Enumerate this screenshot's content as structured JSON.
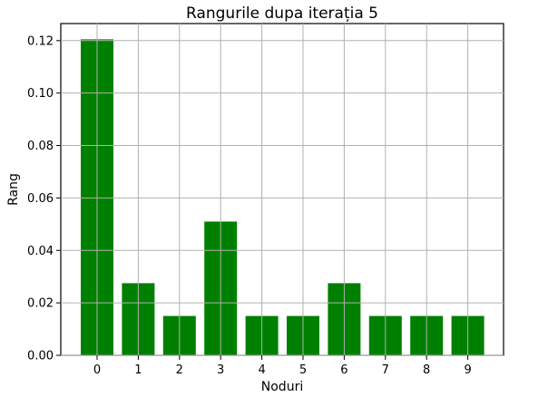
{
  "chart_data": {
    "type": "bar",
    "title": "Rangurile dupa iterația 5",
    "xlabel": "Noduri",
    "ylabel": "Rang",
    "categories": [
      "0",
      "1",
      "2",
      "3",
      "4",
      "5",
      "6",
      "7",
      "8",
      "9"
    ],
    "values": [
      0.1205,
      0.0275,
      0.015,
      0.051,
      0.015,
      0.015,
      0.0275,
      0.015,
      0.015,
      0.015
    ],
    "ylim": [
      0,
      0.1265
    ],
    "yticks": [
      0.0,
      0.02,
      0.04,
      0.06,
      0.08,
      0.1,
      0.12
    ],
    "ytick_labels": [
      "0.00",
      "0.02",
      "0.04",
      "0.06",
      "0.08",
      "0.10",
      "0.12"
    ],
    "grid": true,
    "bar_color": "#008000",
    "grid_color": "#b0b0b0"
  }
}
